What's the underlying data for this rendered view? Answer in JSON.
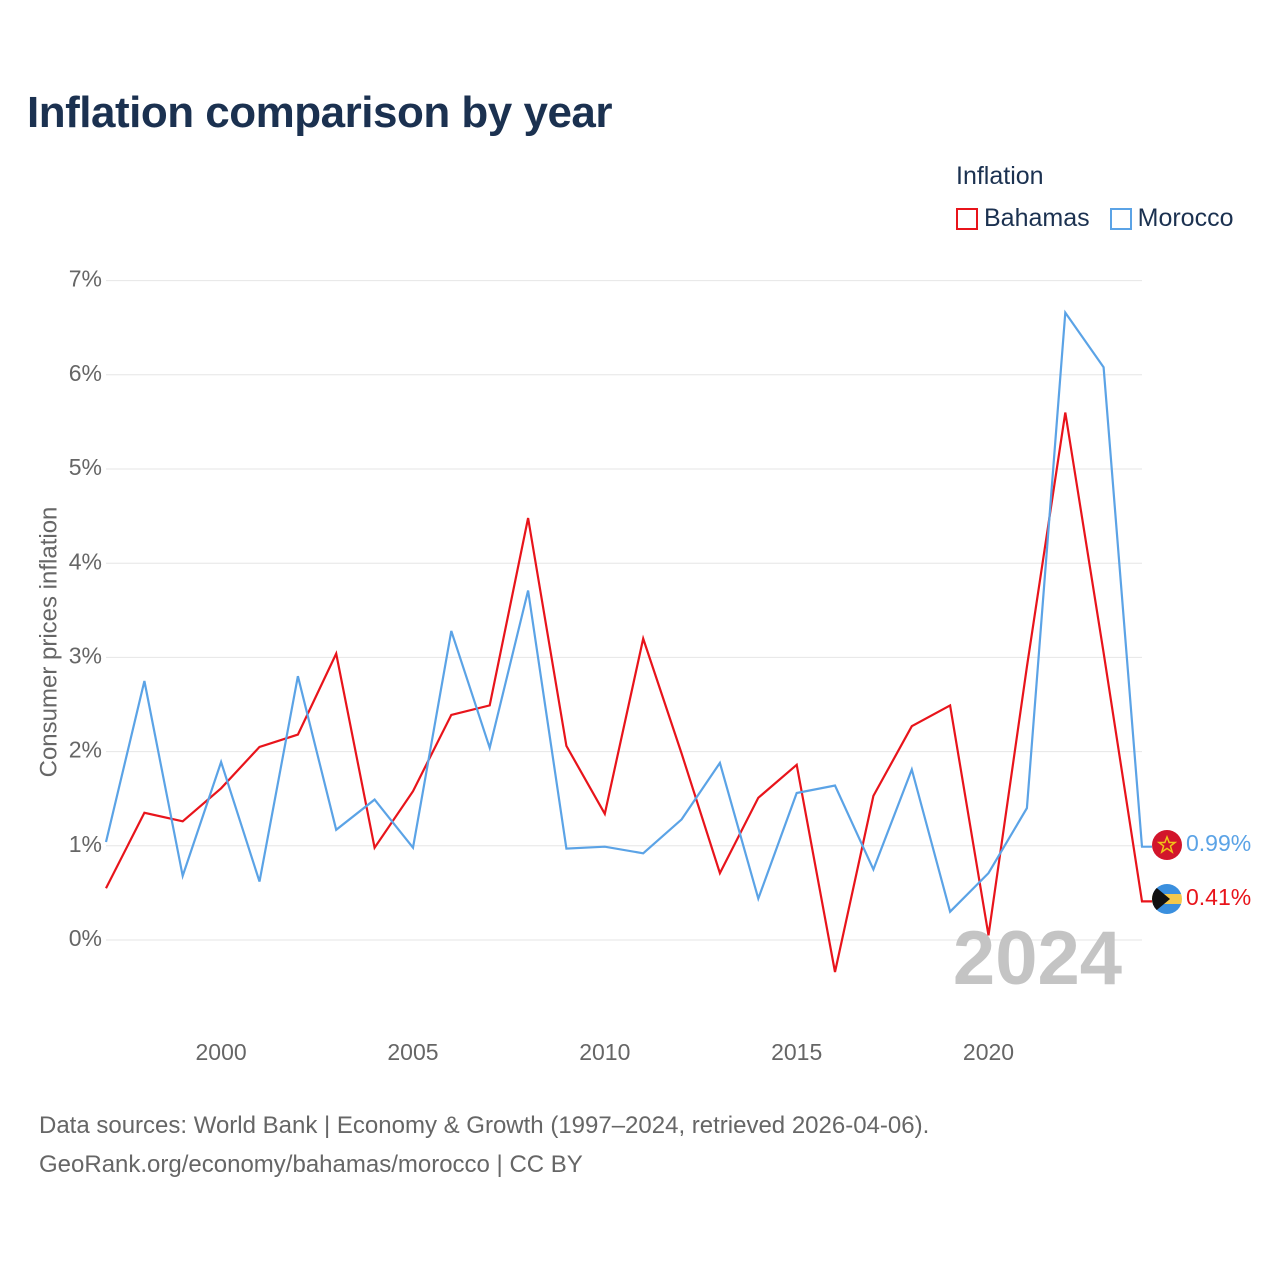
{
  "title": "Inflation comparison by year",
  "legend": {
    "title": "Inflation",
    "items": [
      {
        "label": "Bahamas",
        "color": "#e8141b"
      },
      {
        "label": "Morocco",
        "color": "#5ba3e6"
      }
    ]
  },
  "source": {
    "line1": "Data sources: World Bank | Economy & Growth (1997–2024, retrieved 2026-04-06).",
    "line2": "GeoRank.org/economy/bahamas/morocco | CC BY"
  },
  "chart_data": {
    "type": "line",
    "title": "Inflation comparison by year",
    "xlabel": "",
    "ylabel": "Consumer prices inflation",
    "xlim": [
      1997,
      2024
    ],
    "ylim": [
      -0.7,
      7
    ],
    "grid": true,
    "x_ticks": [
      2000,
      2005,
      2010,
      2015,
      2020
    ],
    "y_ticks": [
      0,
      1,
      2,
      3,
      4,
      5,
      6,
      7
    ],
    "y_tick_labels": [
      "0%",
      "1%",
      "2%",
      "3%",
      "4%",
      "5%",
      "6%",
      "7%"
    ],
    "x": [
      1997,
      1998,
      1999,
      2000,
      2001,
      2002,
      2003,
      2004,
      2005,
      2006,
      2007,
      2008,
      2009,
      2010,
      2011,
      2012,
      2013,
      2014,
      2015,
      2016,
      2017,
      2018,
      2019,
      2020,
      2021,
      2022,
      2023,
      2024
    ],
    "series": [
      {
        "name": "Bahamas",
        "color": "#e8141b",
        "values": [
          0.55,
          1.35,
          1.26,
          1.61,
          2.05,
          2.18,
          3.04,
          0.98,
          1.58,
          2.39,
          2.49,
          4.48,
          2.06,
          1.34,
          3.2,
          1.98,
          0.71,
          1.51,
          1.86,
          -0.34,
          1.53,
          2.27,
          2.49,
          0.05,
          2.9,
          5.6,
          3.05,
          0.41
        ],
        "end_label": "0.41%"
      },
      {
        "name": "Morocco",
        "color": "#5ba3e6",
        "values": [
          1.04,
          2.75,
          0.68,
          1.89,
          0.62,
          2.8,
          1.17,
          1.49,
          0.98,
          3.28,
          2.04,
          3.71,
          0.97,
          0.99,
          0.92,
          1.28,
          1.88,
          0.44,
          1.56,
          1.64,
          0.75,
          1.81,
          0.3,
          0.71,
          1.4,
          6.66,
          6.08,
          0.99
        ],
        "end_label": "0.99%"
      }
    ],
    "annotation": "2024"
  }
}
